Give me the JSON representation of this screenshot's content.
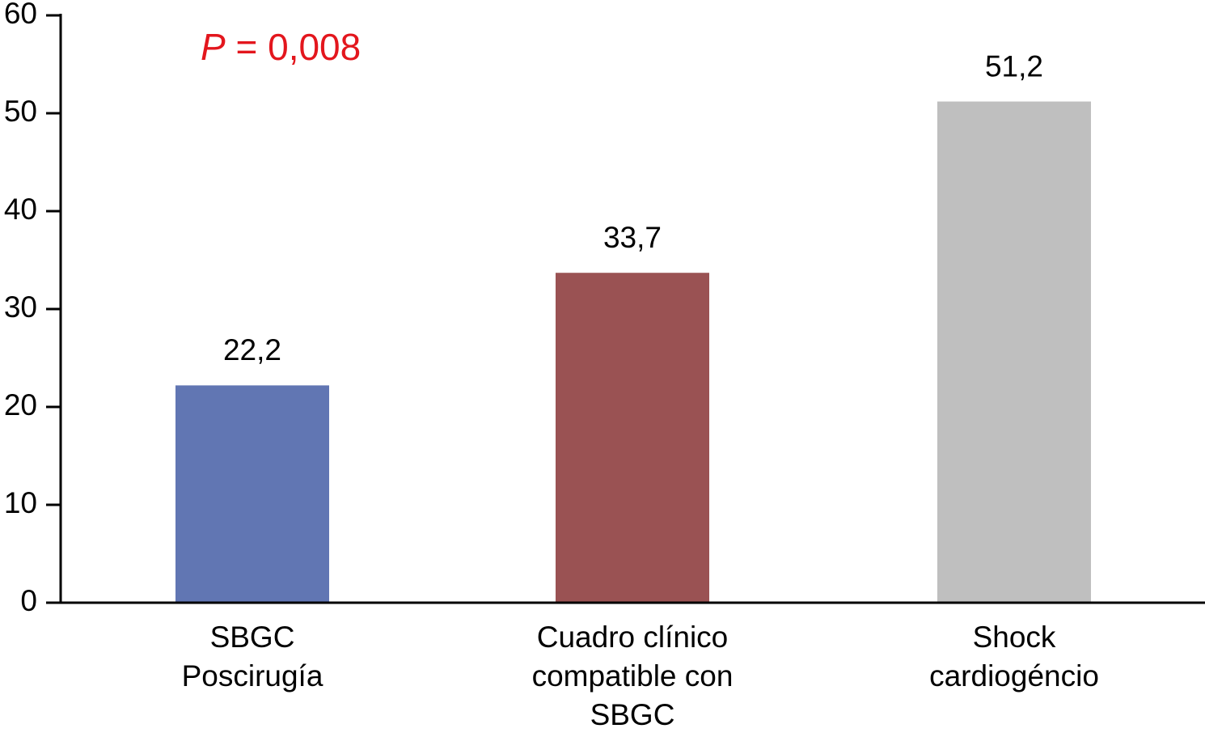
{
  "chart_data": {
    "type": "bar",
    "annotation": [
      "P",
      "= 0,008"
    ],
    "annotation_color": "#e3161d",
    "categories": [
      [
        "SBGC",
        "Poscirugía"
      ],
      [
        "Cuadro clínico",
        "compatible con",
        "SBGC"
      ],
      [
        "Shock",
        "cardiogéncio"
      ]
    ],
    "values": [
      22.2,
      33.7,
      51.2
    ],
    "value_labels": [
      "22,2",
      "33,7",
      "51,2"
    ],
    "colors": [
      "#6176b3",
      "#9a5253",
      "#bfbfbf"
    ],
    "ylim": [
      0,
      60
    ],
    "yticks": [
      0,
      10,
      20,
      30,
      40,
      50,
      60
    ],
    "grid": false
  }
}
